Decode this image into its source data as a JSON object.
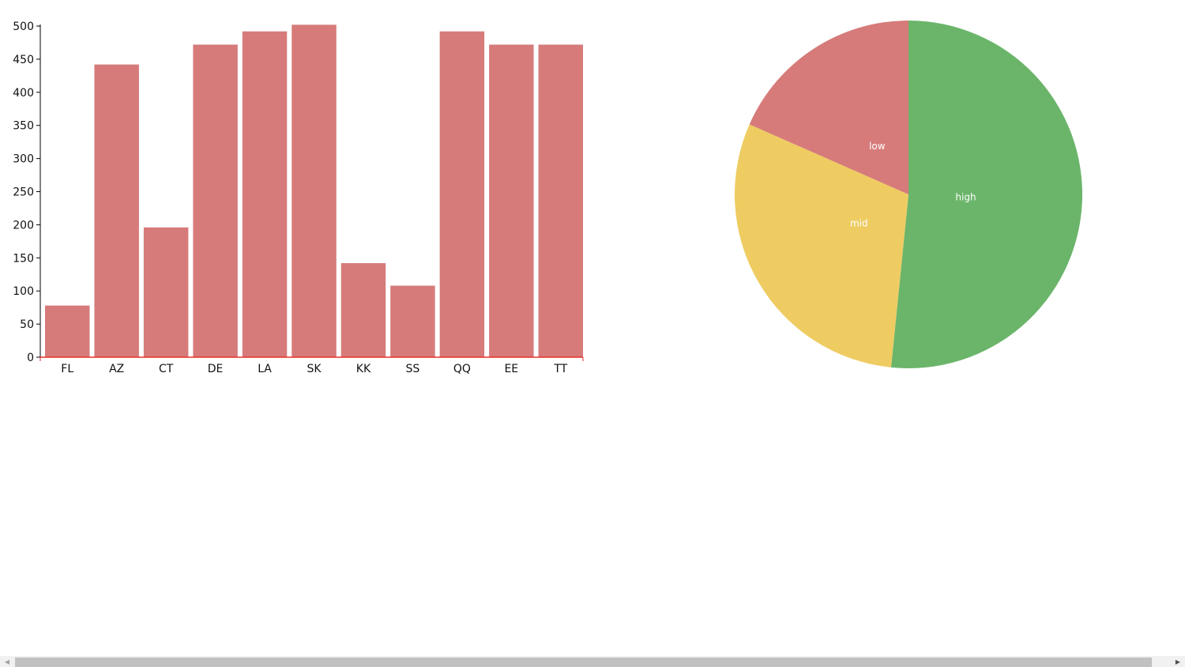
{
  "chart_data": [
    {
      "type": "bar",
      "categories": [
        "FL",
        "AZ",
        "CT",
        "DE",
        "LA",
        "SK",
        "KK",
        "SS",
        "QQ",
        "EE",
        "TT"
      ],
      "values": [
        78,
        442,
        196,
        472,
        492,
        502,
        142,
        108,
        492,
        472,
        472
      ],
      "ylim": [
        0,
        500
      ],
      "yticks": [
        0,
        50,
        100,
        150,
        200,
        250,
        300,
        350,
        400,
        450,
        500
      ],
      "bar_color": "#d67b7a",
      "x_axis_color": "#e8322a",
      "y_axis_color": "#000000",
      "grid": false
    },
    {
      "type": "pie",
      "slices": [
        {
          "label": "high",
          "value": 51.6,
          "color": "#6bb56a"
        },
        {
          "label": "mid",
          "value": 30.0,
          "color": "#eecc62"
        },
        {
          "label": "low",
          "value": 18.4,
          "color": "#d67b7a"
        }
      ]
    }
  ],
  "scrollbar": {
    "left_arrow": "◀",
    "right_arrow": "▶"
  }
}
